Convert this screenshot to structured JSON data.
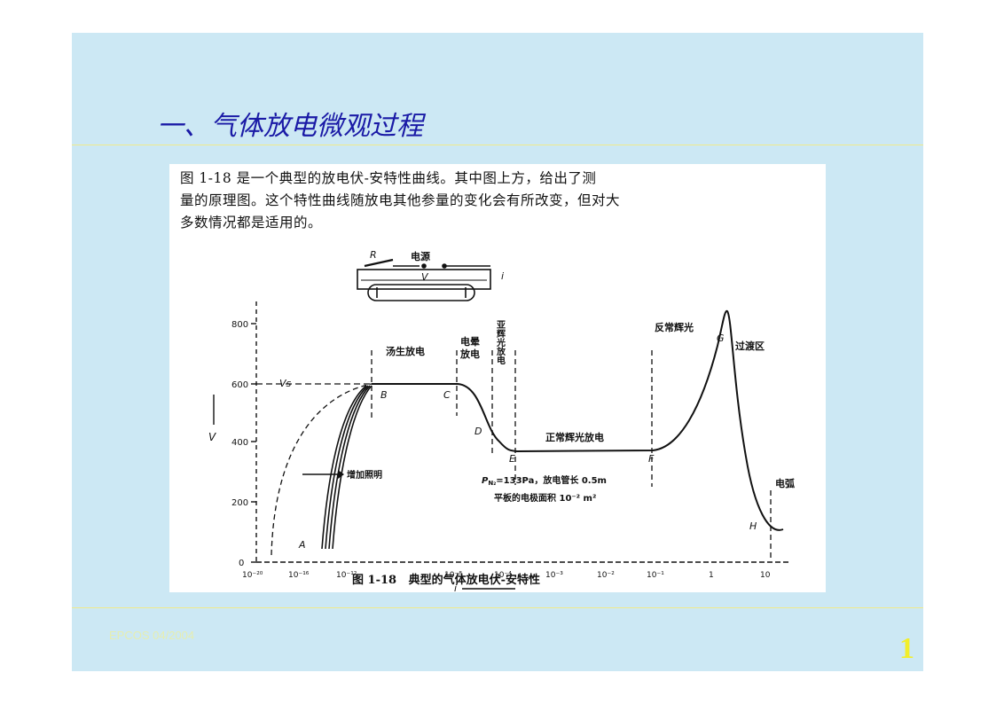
{
  "slide": {
    "title": "一、气体放电微观过程",
    "footer": "EPCOS 04/2004",
    "page_number": "1"
  },
  "figure": {
    "paragraph_lines": [
      "图 1-18 是一个典型的放电伏-安特性曲线。其中图上方，给出了测",
      "量的原理图。这个特性曲线随放电其他参量的变化会有所改变，但对大",
      "多数情况都是适用的。"
    ],
    "caption": "图 1-18   典型的气体放电伏-安特性",
    "circuit": {
      "resistor_label": "R",
      "source_label": "电源",
      "voltage_label": "V",
      "current_label": "i"
    },
    "y_axis": {
      "label": "V",
      "ticks": [
        "800",
        "600",
        "400",
        "200",
        "0"
      ]
    },
    "x_axis": {
      "label": "i",
      "ticks": [
        "10⁻²⁰",
        "10⁻¹⁶",
        "10⁻¹²",
        "10⁻⁸",
        "10⁻⁴",
        "10⁻³",
        "10⁻²",
        "10⁻¹",
        "1",
        "10"
      ]
    },
    "vs_label": "Vs",
    "points": {
      "A": "A",
      "B": "B",
      "C": "C",
      "D": "D",
      "E": "E",
      "F": "F",
      "G": "G",
      "H": "H"
    },
    "regions": {
      "townsend": "汤生放电",
      "corona_1": "电晕",
      "corona_2": "放电",
      "subnormal": "亚辉光放电",
      "normal_glow": "正常辉光放电",
      "abnormal_glow": "反常辉光",
      "transition": "过渡区",
      "arc": "电弧",
      "illumination": "增加照明"
    },
    "conditions": {
      "line1_prefix": "P",
      "line1_sub": "N₂",
      "line1_rest": "=133Pa，放电管长 0.5m",
      "line2": "平板的电极面积 10⁻² m²"
    }
  }
}
